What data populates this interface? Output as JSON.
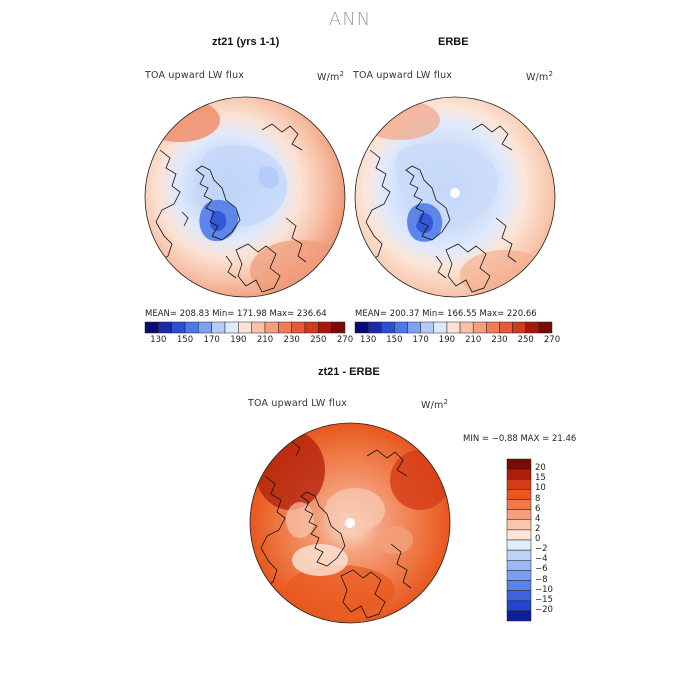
{
  "title": "ANN",
  "panels": [
    {
      "id": "model",
      "title": "zt21 (yrs 1-1)",
      "variable": "TOA upward LW flux",
      "units_base": "W/m",
      "units_exp": "2",
      "stats": "MEAN= 208.83   Min= 171.98   Max= 236.64"
    },
    {
      "id": "obs",
      "title": "ERBE",
      "variable": "TOA upward LW flux",
      "units_base": "W/m",
      "units_exp": "2",
      "stats": "MEAN= 200.37   Min= 166.55   Max= 220.66"
    },
    {
      "id": "diff",
      "title": "zt21 - ERBE",
      "variable": "TOA upward LW flux",
      "units_base": "W/m",
      "units_exp": "2",
      "stats": "MIN =   −0.88 MAX =   21.46"
    }
  ],
  "abs_colorbar": {
    "colors": [
      "#0a0a78",
      "#1a2aa8",
      "#2a4fd6",
      "#4a78ea",
      "#7ea2f2",
      "#b4ccf8",
      "#dfe9fc",
      "#fbe2d4",
      "#f8c2a8",
      "#f4a080",
      "#ef7c58",
      "#e65a38",
      "#d03a20",
      "#a61808",
      "#7a0a04"
    ],
    "ticks": [
      "130",
      "150",
      "170",
      "190",
      "210",
      "230",
      "250",
      "270"
    ]
  },
  "diff_colorbar": {
    "colors": [
      "#7a0a04",
      "#b01e0a",
      "#d43c18",
      "#e8581e",
      "#ef7a48",
      "#f4a07c",
      "#f8c6ac",
      "#fbe6d8",
      "#e2ecfb",
      "#bcd2f8",
      "#9cb8f4",
      "#7a9ef0",
      "#5a82ea",
      "#3c62e0",
      "#2244d0",
      "#0c1e9c"
    ],
    "ticks": [
      "20",
      "15",
      "10",
      "8",
      "6",
      "4",
      "2",
      "0",
      "−2",
      "−4",
      "−6",
      "−8",
      "−10",
      "−15",
      "−20"
    ]
  }
}
